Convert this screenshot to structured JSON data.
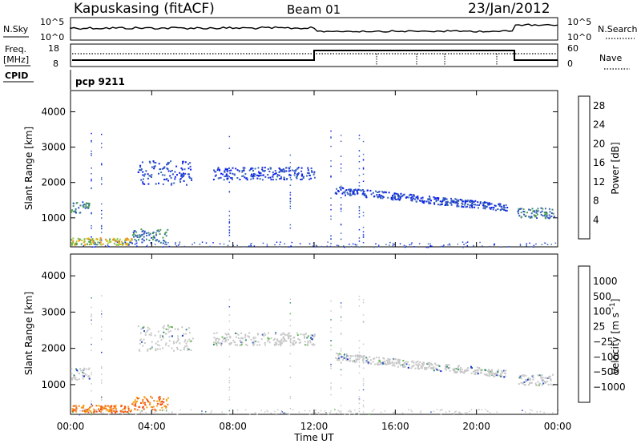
{
  "header": {
    "title": "Kapuskasing (fitACF)",
    "beam": "Beam 01",
    "date": "23/Jan/2012"
  },
  "strip_panels": {
    "nsky_label": "N.Sky",
    "nsky_ticks": [
      "10^5",
      "10^0"
    ],
    "nsearch_label": "N.Search",
    "freq_label": "Freq.",
    "freq_unit": "[MHz]",
    "freq_ticks": [
      "18",
      "8"
    ],
    "nave_label": "Nave",
    "nave_ticks": [
      "60",
      "0"
    ],
    "cpid_label": "CPID",
    "cpid_value": "pcp 9211"
  },
  "colors": {
    "power": [
      "#0a1cf0",
      "#2a4cc8",
      "#3a6ab4",
      "#3d8a7a",
      "#4aa04a",
      "#6cc23a",
      "#a8cc34",
      "#f2b21c",
      "#f68820",
      "#f05a1c",
      "#e8281a",
      "#e00a0a"
    ],
    "velocity": [
      "#1030c8",
      "#3060c0",
      "#3d8a7a",
      "#5fb84a",
      "#c8c8c8",
      "#f6a010",
      "#f47a1a",
      "#f04a1a",
      "#e01010"
    ]
  },
  "chart_data": [
    {
      "type": "heatmap",
      "title": "",
      "xlabel": "",
      "ylabel": "Slant Range [km]",
      "x_ticks": [
        "00:00",
        "04:00",
        "08:00",
        "12:00",
        "16:00",
        "20:00",
        "00:00"
      ],
      "y_ticks": [
        "1000",
        "2000",
        "3000",
        "4000"
      ],
      "ylim": [
        180,
        4600
      ],
      "xlim_hours": [
        0,
        24
      ],
      "colorbar": {
        "label": "Power [dB]",
        "ticks": [
          "4",
          "8",
          "12",
          "16",
          "20",
          "24",
          "28"
        ],
        "range": [
          0,
          30
        ]
      },
      "echo_bands": [
        {
          "hours": [
            0.0,
            0.9
          ],
          "range_km": [
            1150,
            1500
          ],
          "level": "medium"
        },
        {
          "hours": [
            0.0,
            3.0
          ],
          "range_km": [
            250,
            450
          ],
          "level": "high"
        },
        {
          "hours": [
            3.0,
            4.8
          ],
          "range_km": [
            300,
            700
          ],
          "level": "medium"
        },
        {
          "hours": [
            3.3,
            6.0
          ],
          "range_km": [
            1950,
            2650
          ],
          "level": "low"
        },
        {
          "hours": [
            7.0,
            12.0
          ],
          "range_km": [
            2100,
            2450
          ],
          "level": "low"
        },
        {
          "hours": [
            13.0,
            21.5
          ],
          "range_km": [
            1200,
            1900
          ],
          "level": "low"
        },
        {
          "hours": [
            22.0,
            23.8
          ],
          "range_km": [
            1000,
            1300
          ],
          "level": "medium"
        }
      ]
    },
    {
      "type": "heatmap",
      "title": "",
      "xlabel": "Time UT",
      "ylabel": "Slant Range [km]",
      "x_ticks": [
        "00:00",
        "04:00",
        "08:00",
        "12:00",
        "16:00",
        "20:00",
        "00:00"
      ],
      "y_ticks": [
        "1000",
        "2000",
        "3000",
        "4000"
      ],
      "ylim": [
        180,
        4600
      ],
      "xlim_hours": [
        0,
        24
      ],
      "colorbar": {
        "label": "Velocity [m s^-1]",
        "ticks": [
          "1000",
          "500",
          "100",
          "25",
          "−25",
          "−100",
          "−500",
          "−1000"
        ]
      },
      "echo_bands": [
        {
          "hours": [
            0.0,
            0.9
          ],
          "range_km": [
            1150,
            1500
          ],
          "level": "gray"
        },
        {
          "hours": [
            0.0,
            3.0
          ],
          "range_km": [
            250,
            450
          ],
          "level": "negative"
        },
        {
          "hours": [
            3.0,
            4.8
          ],
          "range_km": [
            300,
            700
          ],
          "level": "negative"
        },
        {
          "hours": [
            3.3,
            6.0
          ],
          "range_km": [
            1950,
            2650
          ],
          "level": "gray"
        },
        {
          "hours": [
            7.0,
            12.0
          ],
          "range_km": [
            2100,
            2450
          ],
          "level": "gray"
        },
        {
          "hours": [
            13.0,
            21.5
          ],
          "range_km": [
            1200,
            1900
          ],
          "level": "gray"
        },
        {
          "hours": [
            22.0,
            23.8
          ],
          "range_km": [
            1000,
            1300
          ],
          "level": "gray"
        }
      ]
    }
  ]
}
